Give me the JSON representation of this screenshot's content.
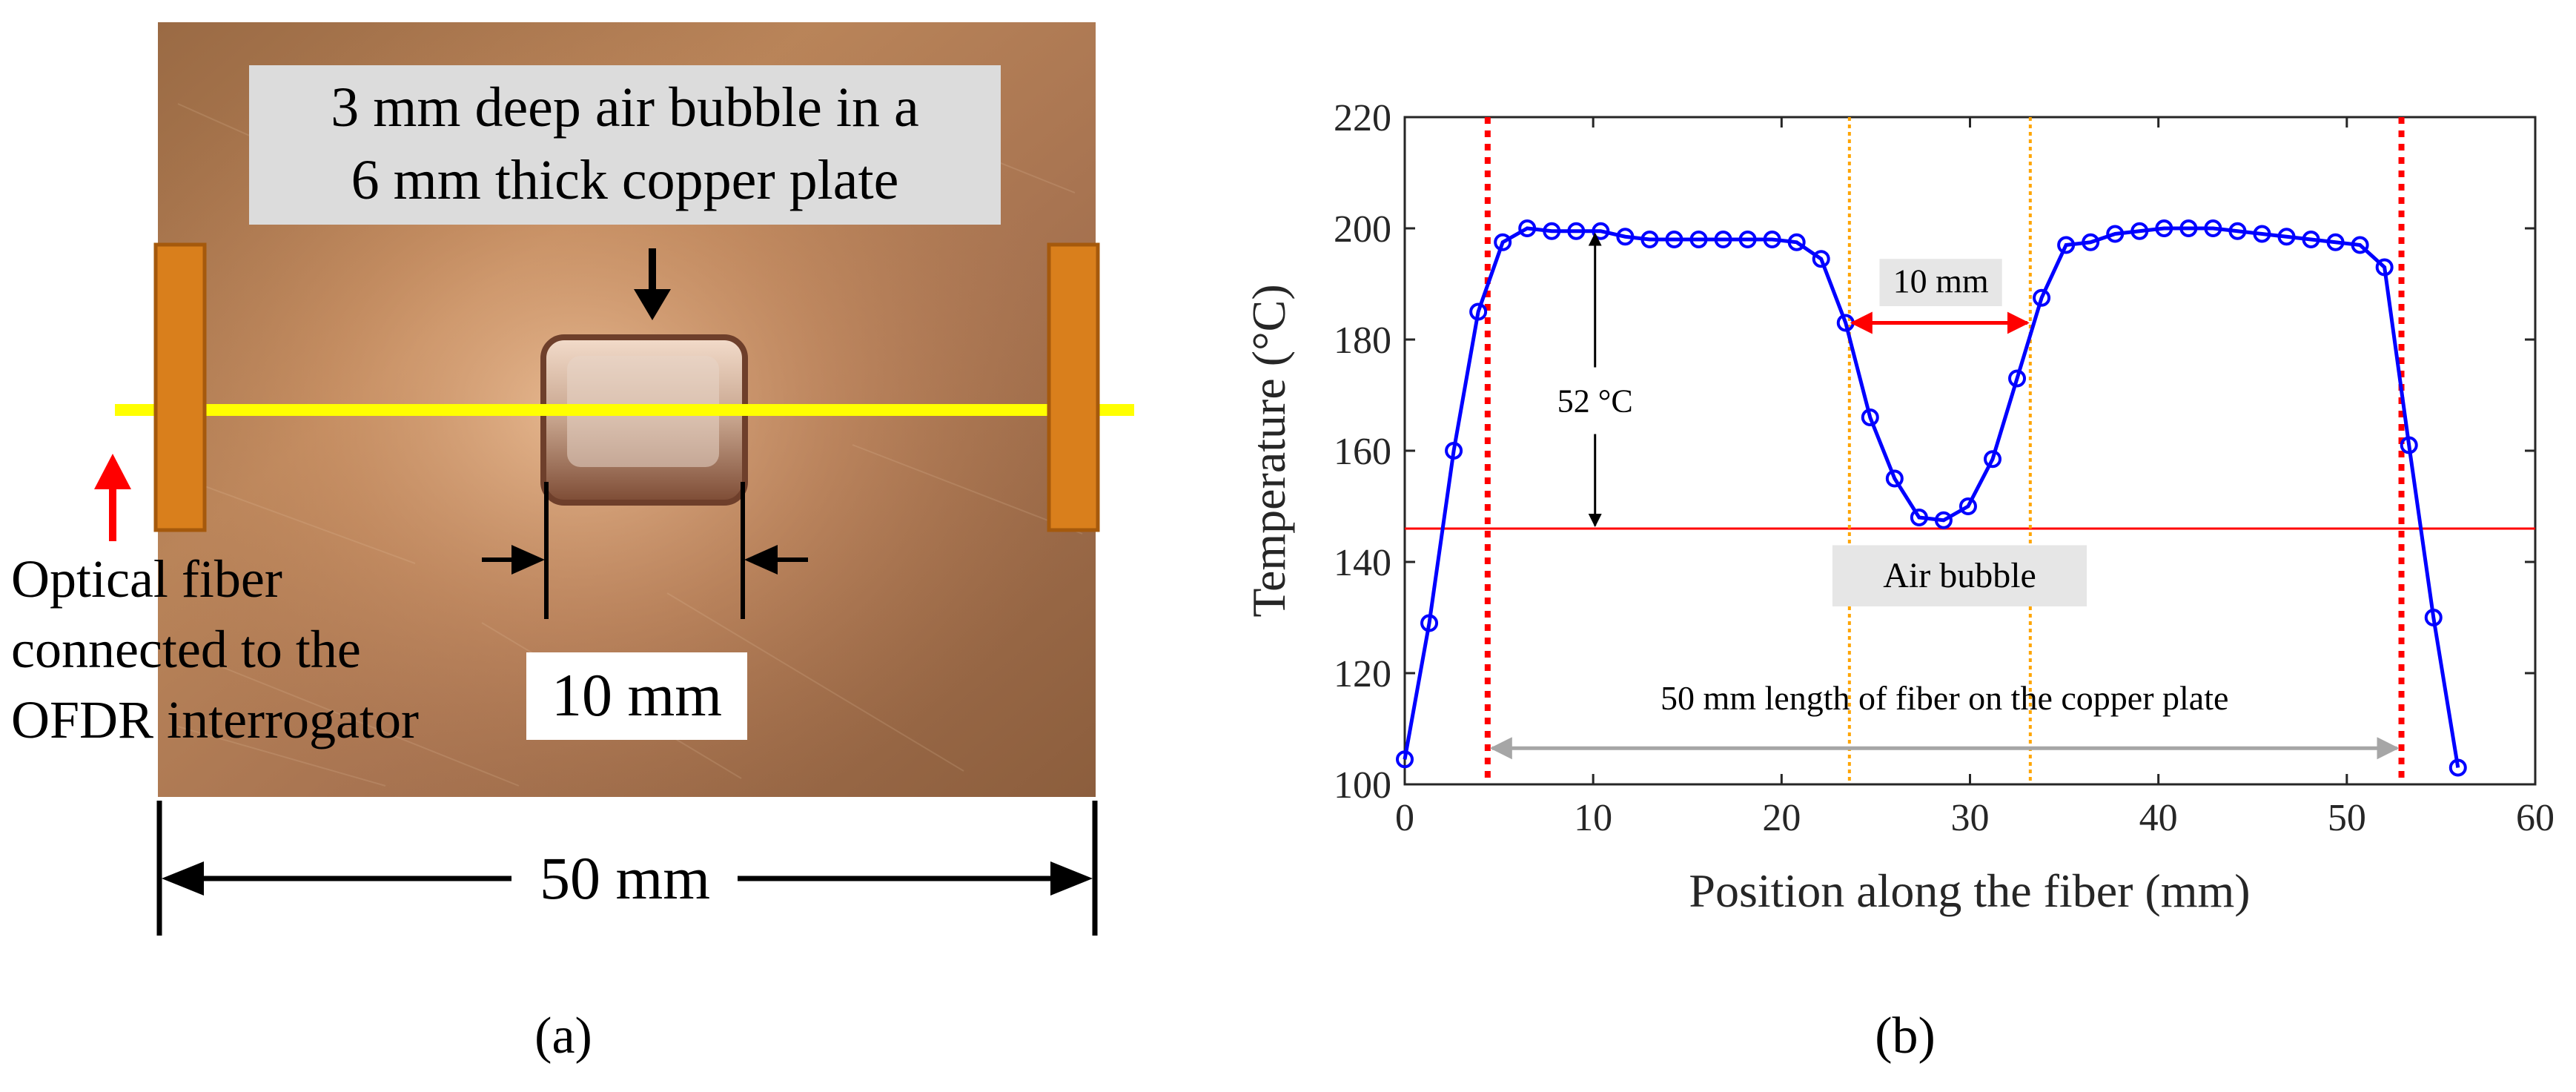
{
  "panel_a": {
    "label": "(a)",
    "callout": [
      "3 mm deep air bubble in a",
      "6 mm thick copper plate"
    ],
    "fiber_label": [
      "Optical fiber",
      "connected to the",
      "OFDR interrogator"
    ],
    "bubble_width_label": "10 mm",
    "plate_width_label": "50 mm",
    "colors": {
      "copper": "#a8744a",
      "fiber": "#ffff00",
      "clamp": "#d97f1c",
      "arrow_red": "#ff0000"
    }
  },
  "panel_b": {
    "label": "(b)"
  },
  "chart_data": {
    "type": "line",
    "xlabel": "Position along the fiber (mm)",
    "ylabel": "Temperature (°C)",
    "xlim": [
      0,
      60
    ],
    "ylim": [
      100,
      220
    ],
    "xticks": [
      0,
      10,
      20,
      30,
      40,
      50,
      60
    ],
    "yticks": [
      100,
      120,
      140,
      160,
      180,
      200,
      220
    ],
    "series": [
      {
        "color": "#0000ff",
        "marker": "circle",
        "x": [
          0,
          1.3,
          2.6,
          3.9,
          5.2,
          6.5,
          7.8,
          9.1,
          10.4,
          11.7,
          13.0,
          14.3,
          15.6,
          16.9,
          18.2,
          19.5,
          20.8,
          22.1,
          23.4,
          24.7,
          26.0,
          27.3,
          28.6,
          29.9,
          31.2,
          32.5,
          33.8,
          35.1,
          36.4,
          37.7,
          39.0,
          40.3,
          41.6,
          42.9,
          44.2,
          45.5,
          46.8,
          48.1,
          49.4,
          50.7,
          52.0,
          53.3,
          54.6,
          55.9
        ],
        "values": [
          104.5,
          129,
          160,
          185,
          197.5,
          200,
          199.5,
          199.5,
          199.5,
          198.5,
          198,
          198,
          198,
          198,
          198,
          198,
          197.5,
          194.5,
          183,
          166,
          155,
          148,
          147.5,
          150,
          158.5,
          173,
          187.5,
          197,
          197.5,
          199,
          199.5,
          200,
          200,
          200,
          199.5,
          199,
          198.5,
          198,
          197.5,
          197,
          193,
          161,
          130,
          103
        ]
      }
    ],
    "hlines": [
      {
        "y": 146,
        "color": "#ff0000"
      }
    ],
    "vlines": [
      {
        "x": 4.4,
        "color": "#ff0000",
        "style": "dotted"
      },
      {
        "x": 52.9,
        "color": "#ff0000",
        "style": "dotted"
      },
      {
        "x": 23.6,
        "color": "#ffa500",
        "style": "dotted"
      },
      {
        "x": 33.2,
        "color": "#ffa500",
        "style": "dotted"
      }
    ],
    "annotations": {
      "width": "10 mm",
      "delta_t": "52 °C",
      "bubble": "Air bubble",
      "fiber_length": "50 mm length of fiber on the copper plate"
    }
  }
}
